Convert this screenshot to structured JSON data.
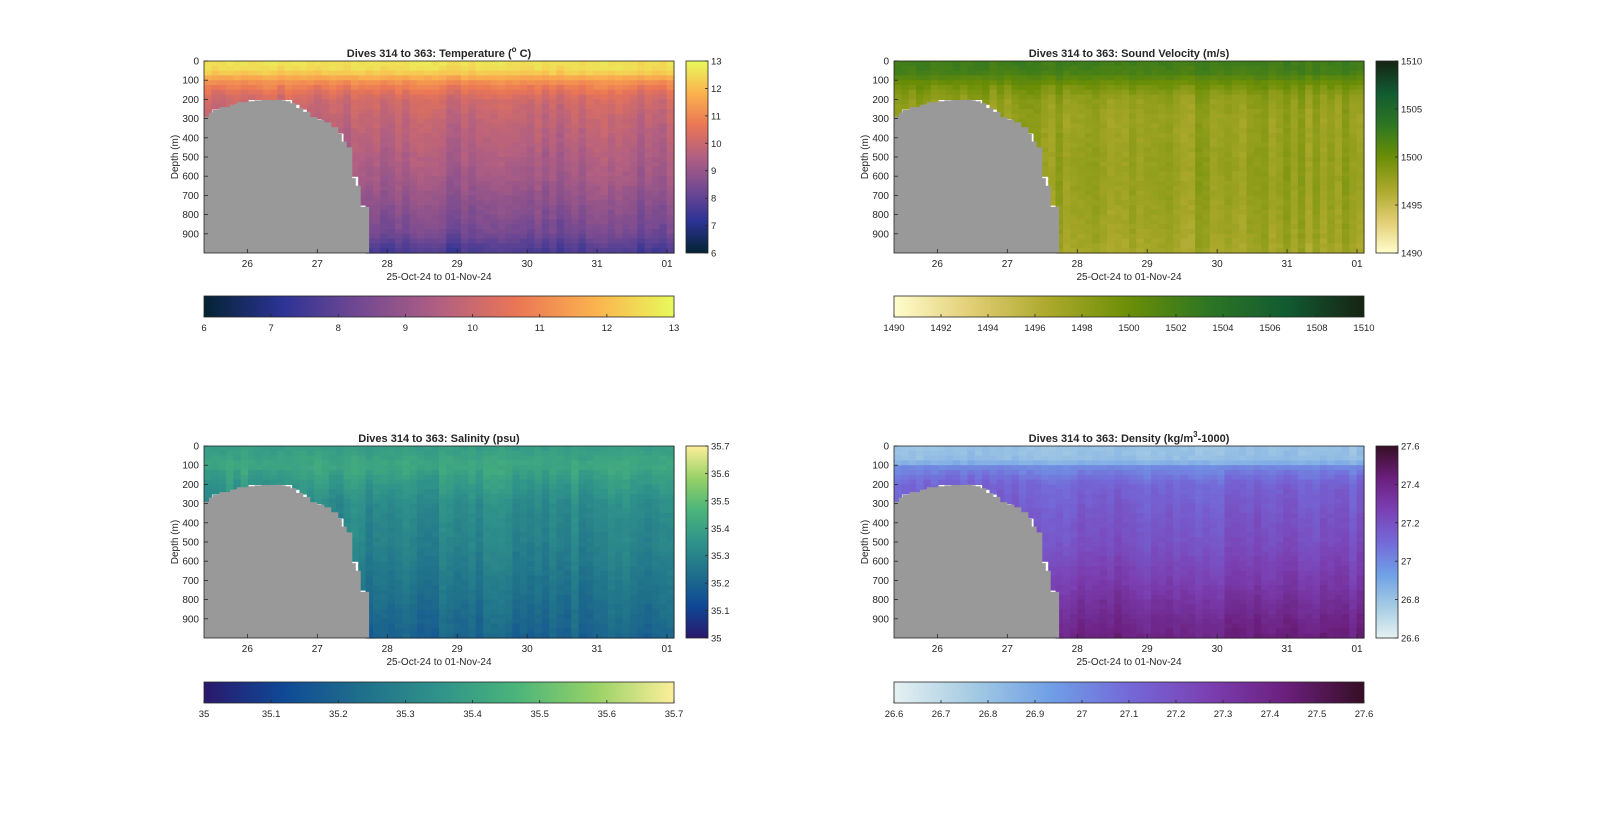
{
  "figure": {
    "xlabel": "25-Oct-24 to 01-Nov-24",
    "ylabel": "Depth (m)",
    "x_ticks": [
      "26",
      "27",
      "28",
      "29",
      "30",
      "31",
      "01"
    ],
    "y_ticks": [
      "0",
      "100",
      "200",
      "300",
      "400",
      "500",
      "600",
      "700",
      "800",
      "900"
    ]
  },
  "chart_data": [
    {
      "type": "heatmap",
      "title": "Dives 314 to 363: Temperature (°C)",
      "title_main": "Dives 314 to 363: Temperature (",
      "title_sup": "o",
      "title_end": " C)",
      "xlabel": "25-Oct-24 to 01-Nov-24",
      "ylabel": "Depth (m)",
      "x_ticks": [
        26,
        27,
        28,
        29,
        30,
        31,
        1
      ],
      "y_ticks": [
        0,
        100,
        200,
        300,
        400,
        500,
        600,
        700,
        800,
        900
      ],
      "ylim": [
        0,
        1000
      ],
      "y_reversed": true,
      "clim": [
        6,
        13
      ],
      "colorbar_ticks_vertical": [
        "6",
        "7",
        "8",
        "9",
        "10",
        "11",
        "12",
        "13"
      ],
      "colorbar_ticks_horizontal": [
        "6",
        "7",
        "8",
        "9",
        "10",
        "11",
        "12",
        "13"
      ],
      "colormap": "thermal",
      "colormap_stops": [
        "#042333",
        "#2c3395",
        "#744992",
        "#b15f82",
        "#eb7655",
        "#fbb34e",
        "#e8fa5b"
      ],
      "profile": [
        [
          0,
          12.6
        ],
        [
          40,
          12.5
        ],
        [
          70,
          12.1
        ],
        [
          100,
          11.3
        ],
        [
          150,
          10.6
        ],
        [
          200,
          10.1
        ],
        [
          300,
          9.8
        ],
        [
          400,
          9.6
        ],
        [
          500,
          9.4
        ],
        [
          600,
          9.2
        ],
        [
          700,
          8.9
        ],
        [
          800,
          8.6
        ],
        [
          900,
          8.3
        ],
        [
          960,
          7.8
        ],
        [
          1000,
          7.6
        ]
      ]
    },
    {
      "type": "heatmap",
      "title": "Dives 314 to 363: Sound Velocity (m/s)",
      "xlabel": "25-Oct-24 to 01-Nov-24",
      "ylabel": "Depth (m)",
      "x_ticks": [
        26,
        27,
        28,
        29,
        30,
        31,
        1
      ],
      "y_ticks": [
        0,
        100,
        200,
        300,
        400,
        500,
        600,
        700,
        800,
        900
      ],
      "ylim": [
        0,
        1000
      ],
      "y_reversed": true,
      "clim": [
        1490,
        1510
      ],
      "colorbar_ticks_vertical": [
        "1490",
        "1495",
        "1500",
        "1505",
        "1510"
      ],
      "colorbar_ticks_horizontal": [
        "1490",
        "1492",
        "1494",
        "1496",
        "1498",
        "1500",
        "1502",
        "1504",
        "1506",
        "1508",
        "1510"
      ],
      "colormap": "speed",
      "colormap_stops": [
        "#fffdcd",
        "#e1cd73",
        "#aaa82a",
        "#6b8e06",
        "#2e7623",
        "#115b32",
        "#172313"
      ],
      "profile": [
        [
          0,
          1502.5
        ],
        [
          60,
          1502.0
        ],
        [
          100,
          1500.5
        ],
        [
          150,
          1499.0
        ],
        [
          200,
          1498.0
        ],
        [
          300,
          1497.6
        ],
        [
          400,
          1497.7
        ],
        [
          500,
          1497.8
        ],
        [
          600,
          1497.8
        ],
        [
          700,
          1497.7
        ],
        [
          800,
          1497.5
        ],
        [
          900,
          1497.3
        ],
        [
          1000,
          1497.0
        ]
      ]
    },
    {
      "type": "heatmap",
      "title": "Dives 314 to 363: Salinity (psu)",
      "xlabel": "25-Oct-24 to 01-Nov-24",
      "ylabel": "Depth (m)",
      "x_ticks": [
        26,
        27,
        28,
        29,
        30,
        31,
        1
      ],
      "y_ticks": [
        0,
        100,
        200,
        300,
        400,
        500,
        600,
        700,
        800,
        900
      ],
      "ylim": [
        0,
        1000
      ],
      "y_reversed": true,
      "clim": [
        35,
        35.7
      ],
      "colorbar_ticks_vertical": [
        "35",
        "35.1",
        "35.2",
        "35.3",
        "35.4",
        "35.5",
        "35.6",
        "35.7"
      ],
      "colorbar_ticks_horizontal": [
        "35",
        "35.1",
        "35.2",
        "35.3",
        "35.4",
        "35.5",
        "35.6",
        "35.7"
      ],
      "colormap": "haline",
      "colormap_stops": [
        "#2a186c",
        "#0f4896",
        "#1f6f8b",
        "#2f938a",
        "#4bb57a",
        "#98d167",
        "#fdef9a"
      ],
      "profile": [
        [
          0,
          35.38
        ],
        [
          50,
          35.4
        ],
        [
          100,
          35.42
        ],
        [
          200,
          35.37
        ],
        [
          300,
          35.33
        ],
        [
          400,
          35.31
        ],
        [
          500,
          35.3
        ],
        [
          600,
          35.28
        ],
        [
          700,
          35.26
        ],
        [
          800,
          35.24
        ],
        [
          900,
          35.22
        ],
        [
          1000,
          35.2
        ]
      ]
    },
    {
      "type": "heatmap",
      "title": "Dives 314 to 363: Density (kg/m³-1000)",
      "title_main": "Dives 314 to 363: Density (kg/m",
      "title_sup": "3",
      "title_end": "-1000)",
      "xlabel": "25-Oct-24 to 01-Nov-24",
      "ylabel": "Depth (m)",
      "x_ticks": [
        26,
        27,
        28,
        29,
        30,
        31,
        1
      ],
      "y_ticks": [
        0,
        100,
        200,
        300,
        400,
        500,
        600,
        700,
        800,
        900
      ],
      "ylim": [
        0,
        1000
      ],
      "y_reversed": true,
      "clim": [
        26.6,
        27.6
      ],
      "colorbar_ticks_vertical": [
        "26.6",
        "26.8",
        "27",
        "27.2",
        "27.4",
        "27.6"
      ],
      "colorbar_ticks_horizontal": [
        "26.6",
        "26.7",
        "26.8",
        "26.9",
        "27",
        "27.1",
        "27.2",
        "27.3",
        "27.4",
        "27.5",
        "27.6"
      ],
      "colormap": "dense",
      "colormap_stops": [
        "#e6f1f1",
        "#a5cbe3",
        "#6f9fe6",
        "#7469d8",
        "#7b40b3",
        "#6b1f7d",
        "#360e24"
      ],
      "profile": [
        [
          0,
          26.8
        ],
        [
          80,
          26.82
        ],
        [
          110,
          27.0
        ],
        [
          200,
          27.12
        ],
        [
          300,
          27.15
        ],
        [
          400,
          27.18
        ],
        [
          500,
          27.2
        ],
        [
          600,
          27.24
        ],
        [
          700,
          27.28
        ],
        [
          800,
          27.33
        ],
        [
          900,
          27.38
        ],
        [
          1000,
          27.42
        ]
      ]
    }
  ],
  "bathymetry_color": "#999999"
}
